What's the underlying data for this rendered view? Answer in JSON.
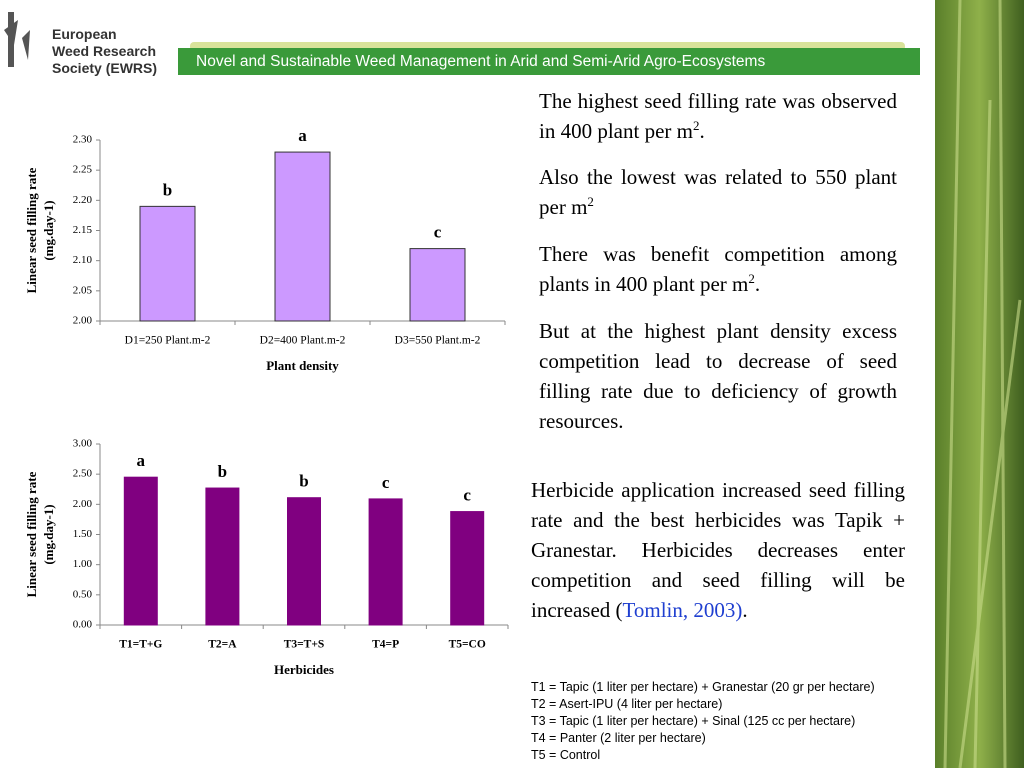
{
  "header": {
    "society": [
      "European",
      "Weed Research",
      "Society (EWRS)"
    ],
    "banner": "Novel and Sustainable Weed Management in Arid  and Semi-Arid Agro-Ecosystems"
  },
  "chart_data": [
    {
      "type": "bar",
      "ylabel": [
        "Linear seed filling rate",
        "(mg.day-1)"
      ],
      "xlabel": "Plant density",
      "categories": [
        "D1=250 Plant.m-2",
        "D2=400 Plant.m-2",
        "D3=550 Plant.m-2"
      ],
      "values": [
        2.19,
        2.28,
        2.12
      ],
      "annotations": [
        "b",
        "a",
        "c"
      ],
      "color": "#cc99ff",
      "ylim": [
        2.0,
        2.3
      ],
      "yticks": [
        {
          "value": 2.0,
          "label": "2.00"
        },
        {
          "value": 2.05,
          "label": "2.05"
        },
        {
          "value": 2.1,
          "label": "2.10"
        },
        {
          "value": 2.15,
          "label": "2.15"
        },
        {
          "value": 2.2,
          "label": "2.20"
        },
        {
          "value": 2.25,
          "label": "2.25"
        },
        {
          "value": 2.3,
          "label": "2.30"
        }
      ]
    },
    {
      "type": "bar",
      "ylabel": [
        "Linear seed filling rate",
        "(mg.day-1)"
      ],
      "xlabel": "Herbicides",
      "categories": [
        "T1=T+G",
        "T2=A",
        "T3=T+S",
        "T4=P",
        "T5=CO"
      ],
      "values": [
        2.45,
        2.27,
        2.11,
        2.09,
        1.88
      ],
      "annotations": [
        "a",
        "b",
        "b",
        "c",
        "c"
      ],
      "color": "#800080",
      "ylim": [
        0,
        3
      ],
      "yticks": [
        {
          "value": 0,
          "label": "0.00"
        },
        {
          "value": 0.5,
          "label": "0.50"
        },
        {
          "value": 1,
          "label": "1.00"
        },
        {
          "value": 1.5,
          "label": "1.50"
        },
        {
          "value": 2,
          "label": "2.00"
        },
        {
          "value": 2.5,
          "label": "2.50"
        },
        {
          "value": 3,
          "label": "3.00"
        }
      ]
    }
  ],
  "text": {
    "p1": [
      "The highest seed filling rate was observed in 400 plant per m",
      "2",
      "."
    ],
    "p2": [
      "Also the lowest was related to 550 plant per m",
      "2"
    ],
    "p3": [
      "There was benefit competition among plants in 400 plant per m",
      "2",
      "."
    ],
    "p4": "But at the highest plant density excess competition lead to decrease of seed filling rate due to deficiency of growth resources.",
    "p5": [
      "Herbicide application increased seed filling rate and the best herbicides was Tapik + Granestar. Herbicides decreases enter competition and seed filling will be increased  (",
      "Tomlin, 2003)",
      "."
    ],
    "legend": [
      "T1 = Tapic (1 liter per hectare) + Granestar (20 gr per hectare)",
      "T2 = Asert-IPU (4 liter per hectare)",
      "T3 = Tapic (1 liter per hectare) + Sinal (125 cc per hectare)",
      "T4 = Panter (2 liter per hectare)",
      "T5 = Control"
    ]
  }
}
